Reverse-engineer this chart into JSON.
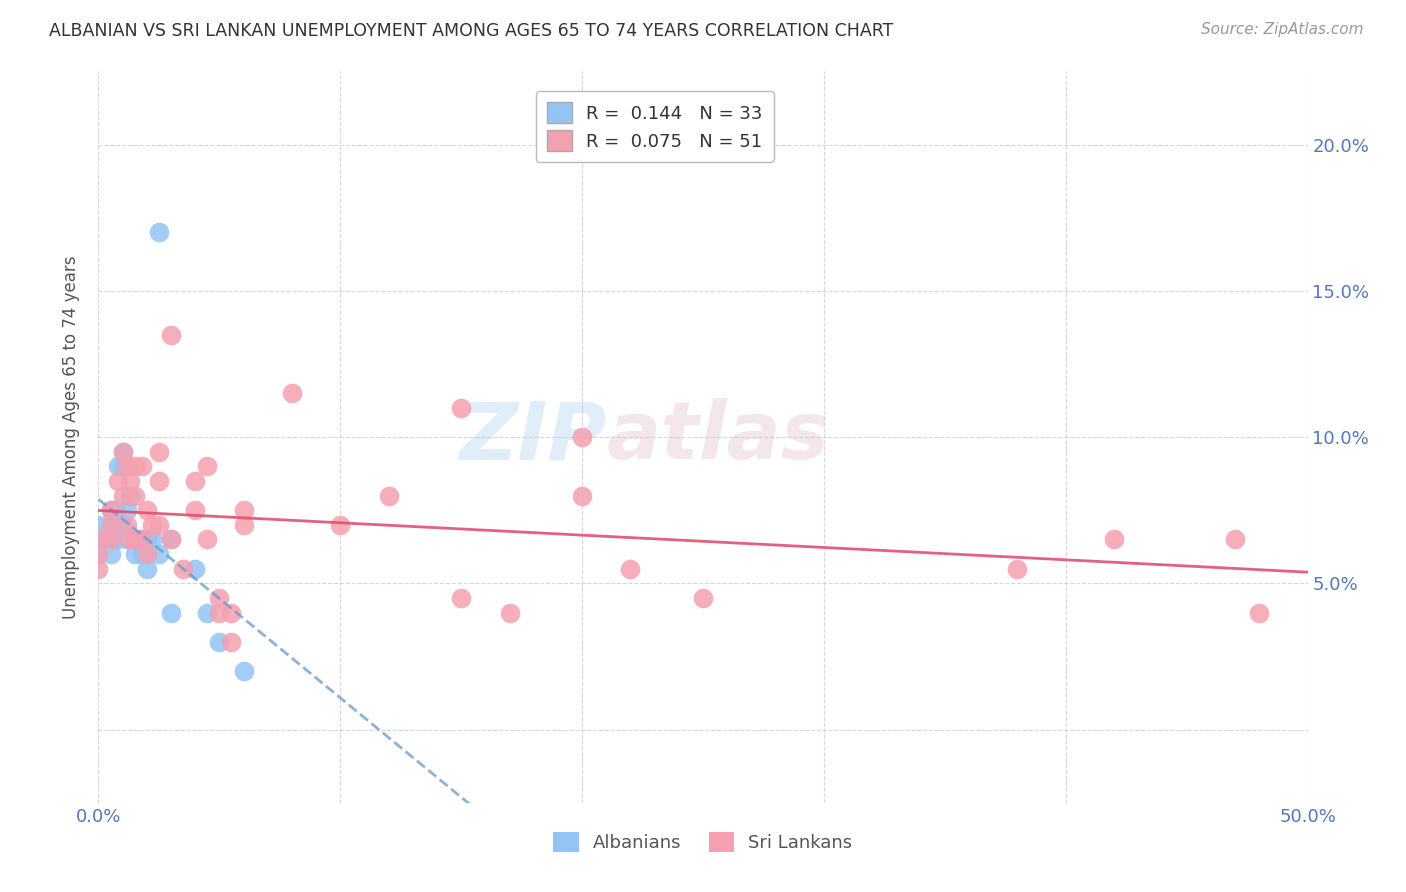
{
  "title": "ALBANIAN VS SRI LANKAN UNEMPLOYMENT AMONG AGES 65 TO 74 YEARS CORRELATION CHART",
  "source": "Source: ZipAtlas.com",
  "ylabel": "Unemployment Among Ages 65 to 74 years",
  "xlim": [
    0.0,
    50.0
  ],
  "ylim": [
    -2.5,
    22.5
  ],
  "xticks": [
    0.0,
    10.0,
    20.0,
    30.0,
    40.0,
    50.0
  ],
  "yticks": [
    0.0,
    5.0,
    10.0,
    15.0,
    20.0
  ],
  "ytick_labels_left": [
    "",
    "",
    "",
    "",
    ""
  ],
  "ytick_labels_right": [
    "",
    "5.0%",
    "10.0%",
    "15.0%",
    "20.0%"
  ],
  "xtick_labels": [
    "0.0%",
    "",
    "",
    "",
    "",
    "50.0%"
  ],
  "albanian_R": 0.144,
  "albanian_N": 33,
  "srilankan_R": 0.075,
  "srilankan_N": 51,
  "albanian_color": "#92C5F5",
  "srilankan_color": "#F5A0B0",
  "albanian_line_color": "#6699CC",
  "srilankan_line_color": "#E05070",
  "axis_color": "#5577BB",
  "watermark_zip": "ZIP",
  "watermark_atlas": "atlas",
  "albanian_x": [
    0.0,
    0.0,
    0.0,
    0.5,
    0.5,
    0.5,
    0.5,
    0.7,
    0.7,
    0.8,
    0.8,
    1.0,
    1.0,
    1.0,
    1.2,
    1.2,
    1.3,
    1.3,
    1.5,
    1.7,
    1.8,
    2.0,
    2.0,
    2.0,
    2.2,
    2.5,
    2.5,
    3.0,
    3.0,
    4.0,
    4.5,
    5.0,
    6.0
  ],
  "albanian_y": [
    7.0,
    6.5,
    6.0,
    7.5,
    7.0,
    6.5,
    6.0,
    7.5,
    7.0,
    9.0,
    6.5,
    9.5,
    9.0,
    7.0,
    7.5,
    6.5,
    8.0,
    6.5,
    6.0,
    6.5,
    6.0,
    6.5,
    6.0,
    5.5,
    6.5,
    17.0,
    6.0,
    6.5,
    4.0,
    5.5,
    4.0,
    3.0,
    2.0
  ],
  "srilankan_x": [
    0.0,
    0.0,
    0.0,
    0.5,
    0.5,
    0.5,
    0.8,
    1.0,
    1.0,
    1.2,
    1.2,
    1.3,
    1.3,
    1.5,
    1.5,
    1.5,
    1.8,
    1.8,
    2.0,
    2.0,
    2.2,
    2.5,
    2.5,
    2.5,
    3.0,
    3.0,
    3.5,
    4.0,
    4.0,
    4.5,
    4.5,
    5.0,
    5.0,
    5.5,
    5.5,
    6.0,
    6.0,
    8.0,
    10.0,
    12.0,
    15.0,
    15.0,
    17.0,
    20.0,
    20.0,
    22.0,
    25.0,
    38.0,
    42.0,
    47.0,
    48.0
  ],
  "srilankan_y": [
    6.5,
    6.0,
    5.5,
    7.5,
    7.0,
    6.5,
    8.5,
    9.5,
    8.0,
    9.0,
    7.0,
    8.5,
    6.5,
    9.0,
    8.0,
    6.5,
    9.0,
    6.5,
    7.5,
    6.0,
    7.0,
    9.5,
    8.5,
    7.0,
    13.5,
    6.5,
    5.5,
    8.5,
    7.5,
    9.0,
    6.5,
    4.5,
    4.0,
    4.0,
    3.0,
    7.5,
    7.0,
    11.5,
    7.0,
    8.0,
    11.0,
    4.5,
    4.0,
    10.0,
    8.0,
    5.5,
    4.5,
    5.5,
    6.5,
    6.5,
    4.0
  ],
  "background_color": "#FFFFFF"
}
